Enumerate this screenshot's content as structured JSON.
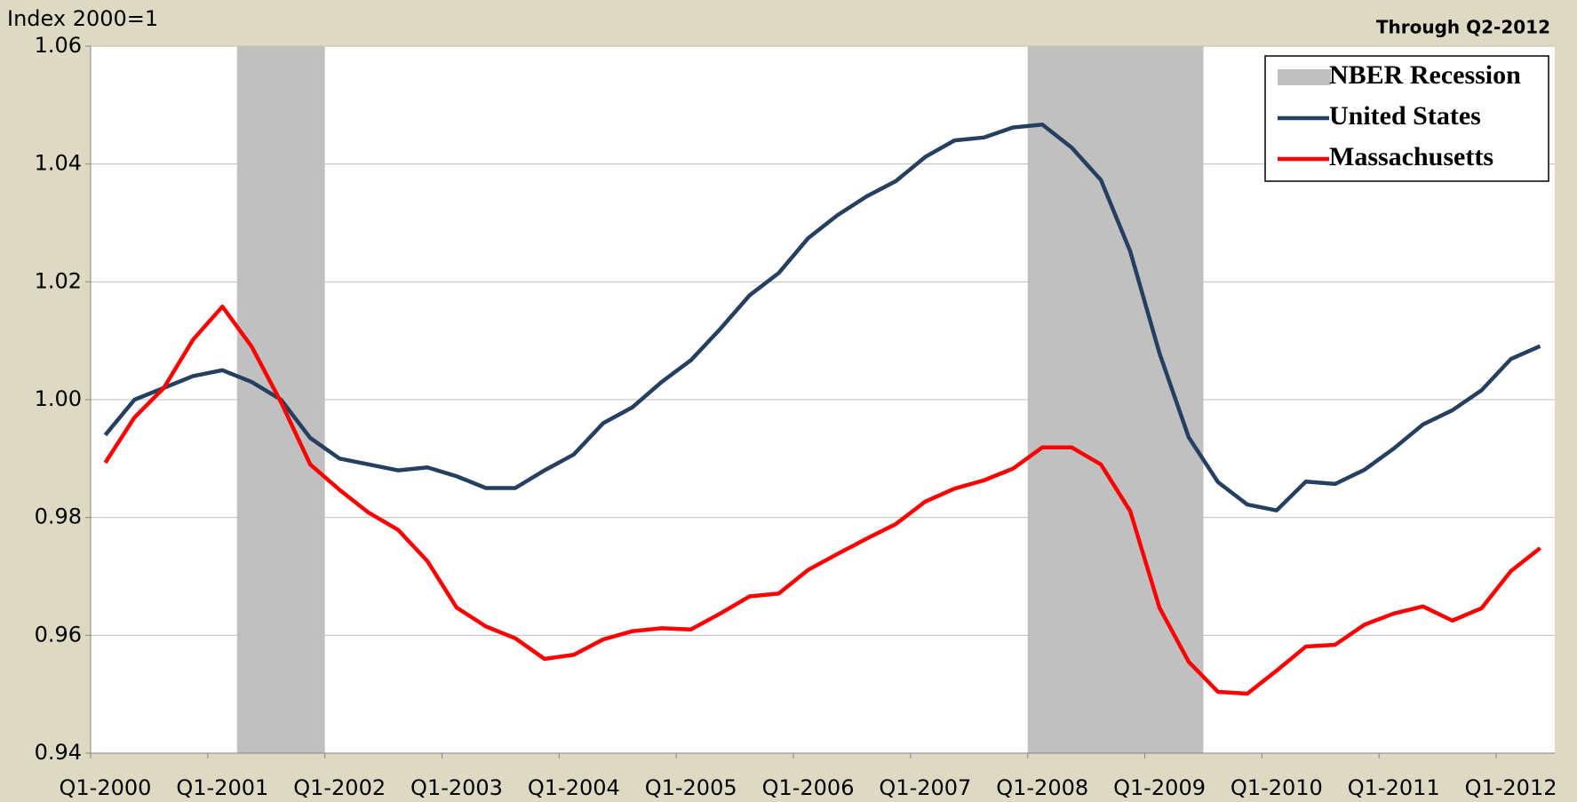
{
  "chart_data": {
    "type": "line",
    "y_axis_label": "Index 2000=1",
    "annotation": "Through Q2-2012",
    "categories": [
      "Q1-2000",
      null,
      null,
      null,
      "Q1-2001",
      null,
      null,
      null,
      "Q1-2002",
      null,
      null,
      null,
      "Q1-2003",
      null,
      null,
      null,
      "Q1-2004",
      null,
      null,
      null,
      "Q1-2005",
      null,
      null,
      null,
      "Q1-2006",
      null,
      null,
      null,
      "Q1-2007",
      null,
      null,
      null,
      "Q1-2008",
      null,
      null,
      null,
      "Q1-2009",
      null,
      null,
      null,
      "Q1-2010",
      null,
      null,
      null,
      "Q1-2011",
      null,
      null,
      null,
      "Q1-2012",
      null
    ],
    "series": [
      {
        "name": "United States",
        "color": "#243f60",
        "values": [
          0.994,
          1.0,
          1.002,
          1.004,
          1.005,
          1.003,
          1.0,
          0.9935,
          0.99,
          0.989,
          0.988,
          0.9885,
          0.987,
          0.985,
          0.985,
          0.988,
          0.9907,
          0.996,
          0.9987,
          1.003,
          1.0067,
          1.012,
          1.0177,
          1.0215,
          1.0274,
          1.0313,
          1.0345,
          1.0371,
          1.0412,
          1.044,
          1.0445,
          1.0462,
          1.0467,
          1.0428,
          1.0373,
          1.0252,
          1.0079,
          0.9936,
          0.986,
          0.9822,
          0.9812,
          0.9861,
          0.9857,
          0.9881,
          0.9917,
          0.9958,
          0.9982,
          1.0016,
          1.0069,
          1.0091
        ]
      },
      {
        "name": "Massachusetts",
        "color": "#ff0000",
        "values": [
          0.9893,
          0.997,
          1.002,
          1.0102,
          1.0158,
          1.009,
          0.9996,
          0.989,
          0.9847,
          0.9808,
          0.9779,
          0.9726,
          0.9647,
          0.9615,
          0.9595,
          0.956,
          0.9567,
          0.9593,
          0.9607,
          0.9612,
          0.961,
          0.9637,
          0.9666,
          0.9671,
          0.9711,
          0.9738,
          0.9764,
          0.9789,
          0.9827,
          0.9849,
          0.9863,
          0.9883,
          0.9919,
          0.9919,
          0.989,
          0.9811,
          0.9647,
          0.9555,
          0.9504,
          0.9501,
          0.954,
          0.9581,
          0.9584,
          0.9618,
          0.9637,
          0.9649,
          0.9625,
          0.9646,
          0.9709,
          0.9748
        ]
      }
    ],
    "shaded": {
      "name": "NBER Recession",
      "color": "#c0c0c0",
      "ranges": [
        {
          "from": 5,
          "to": 7
        },
        {
          "from": 32,
          "to": 37
        }
      ]
    },
    "ylim": [
      0.94,
      1.06
    ],
    "yticks": [
      0.94,
      0.96,
      0.98,
      {
        "value": 1,
        "label": "1.00"
      },
      1.02,
      1.04,
      1.06
    ],
    "grid": true,
    "legend": "top-right"
  }
}
